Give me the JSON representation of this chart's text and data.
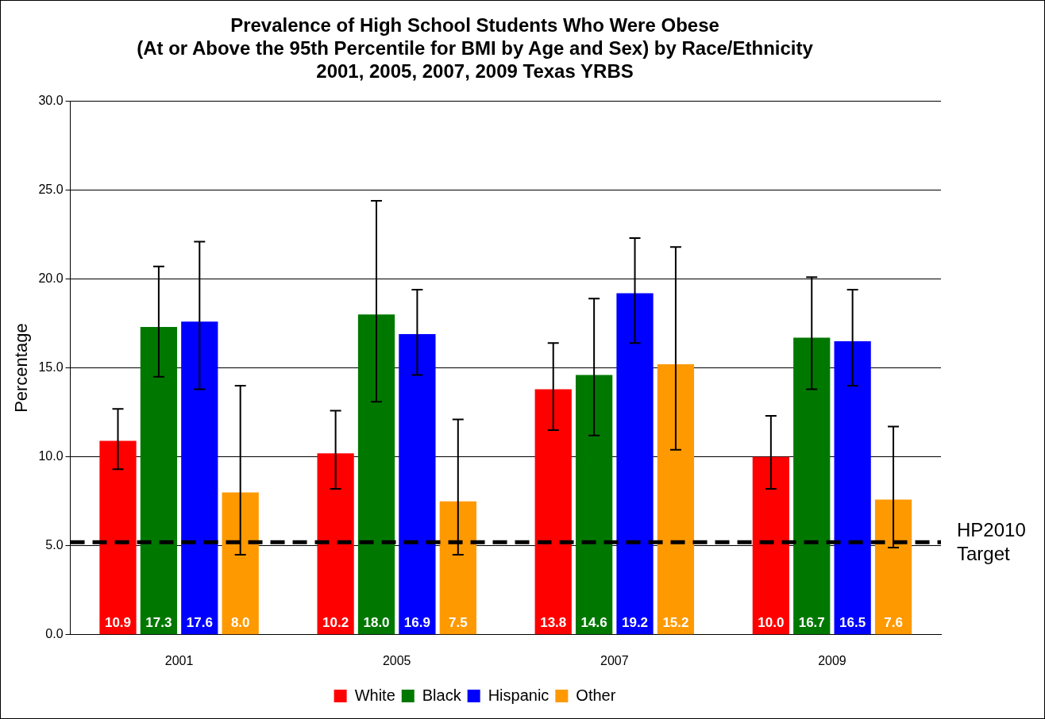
{
  "chart_data": {
    "type": "bar",
    "title": "Prevalence of High School Students Who Were Obese\n(At or Above the 95th Percentile for BMI by Age and Sex) by Race/Ethnicity\n2001, 2005, 2007, 2009 Texas YRBS",
    "ylabel": "Percentage",
    "categories": [
      "2001",
      "2005",
      "2007",
      "2009"
    ],
    "series": [
      {
        "name": "White",
        "color": "#ff0000",
        "values": [
          10.9,
          10.2,
          13.8,
          10.0
        ],
        "value_labels": [
          "10.9",
          "10.2",
          "13.8",
          "10.0"
        ],
        "errors": [
          [
            9.3,
            12.7
          ],
          [
            8.2,
            12.6
          ],
          [
            11.5,
            16.4
          ],
          [
            8.2,
            12.3
          ]
        ]
      },
      {
        "name": "Black",
        "color": "#007800",
        "values": [
          17.3,
          18.0,
          14.6,
          16.7
        ],
        "value_labels": [
          "17.3",
          "18.0",
          "14.6",
          "16.7"
        ],
        "errors": [
          [
            14.5,
            20.7
          ],
          [
            13.1,
            24.4
          ],
          [
            11.2,
            18.9
          ],
          [
            13.8,
            20.1
          ]
        ]
      },
      {
        "name": "Hispanic",
        "color": "#0000ff",
        "values": [
          17.6,
          16.9,
          19.2,
          16.5
        ],
        "value_labels": [
          "17.6",
          "16.9",
          "19.2",
          "16.5"
        ],
        "errors": [
          [
            13.8,
            22.1
          ],
          [
            14.6,
            19.4
          ],
          [
            16.4,
            22.3
          ],
          [
            14.0,
            19.4
          ]
        ]
      },
      {
        "name": "Other",
        "color": "#ff9900",
        "values": [
          8.0,
          7.5,
          15.2,
          7.6
        ],
        "value_labels": [
          "8.0",
          "7.5",
          "15.2",
          "7.6"
        ],
        "errors": [
          [
            4.5,
            14.0
          ],
          [
            4.5,
            12.1
          ],
          [
            10.4,
            21.8
          ],
          [
            4.9,
            11.7
          ]
        ]
      }
    ],
    "ylim": [
      0,
      30
    ],
    "yticks": [
      {
        "value": 0,
        "label": "0.0"
      },
      {
        "value": 5,
        "label": "5.0"
      },
      {
        "value": 10,
        "label": "10.0"
      },
      {
        "value": 15,
        "label": "15.0"
      },
      {
        "value": 20,
        "label": "20.0"
      },
      {
        "value": 25,
        "label": "25.0"
      },
      {
        "value": 30,
        "label": "30.0"
      }
    ],
    "ref_lines": [
      {
        "axis": "y",
        "value": 5.2,
        "label": "HP2010 Target",
        "color": "#000000",
        "line_style": "dashed"
      }
    ],
    "grid": "y",
    "legend": "bottom"
  }
}
